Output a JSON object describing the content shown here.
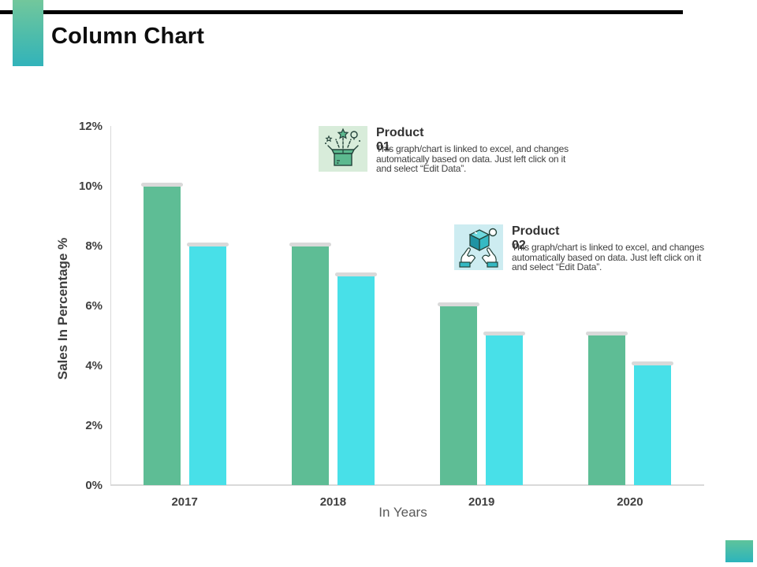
{
  "slide": {
    "title": "Column Chart",
    "accent_gradient_top": "#72c79c",
    "accent_gradient_bottom": "#32b3ba",
    "rule_color": "#000000"
  },
  "callouts": [
    {
      "title": "Product 01",
      "body": "This graph/chart is linked to excel,  and changes automatically based on data. Just left click on it and select “Edit Data”.",
      "icon": "surprise-box-icon",
      "icon_bg": "#d8ecda"
    },
    {
      "title": "Product 02",
      "body": "This graph/chart is linked to excel,  and changes automatically based on data. Just left click on it and select “Edit Data”.",
      "icon": "hands-holding-cube-icon",
      "icon_bg": "#cdecf1"
    }
  ],
  "chart_data": {
    "type": "bar",
    "title": "",
    "categories": [
      "2017",
      "2018",
      "2019",
      "2020"
    ],
    "series": [
      {
        "name": "Product 01",
        "color": "#5ebd95",
        "values": [
          10,
          8,
          6,
          5
        ]
      },
      {
        "name": "Product 02",
        "color": "#48e0e8",
        "values": [
          8,
          7,
          5,
          4
        ]
      }
    ],
    "xlabel": "In Years",
    "ylabel": "Sales In Percentage %",
    "ylim": [
      0,
      12
    ],
    "ytick_step": 2,
    "yticks": [
      "0%",
      "2%",
      "4%",
      "6%",
      "8%",
      "10%",
      "12%"
    ],
    "grid": false,
    "legend": "none",
    "axis_color": "#d9d9d9",
    "bar_cap_color": "#d9d9d9"
  }
}
